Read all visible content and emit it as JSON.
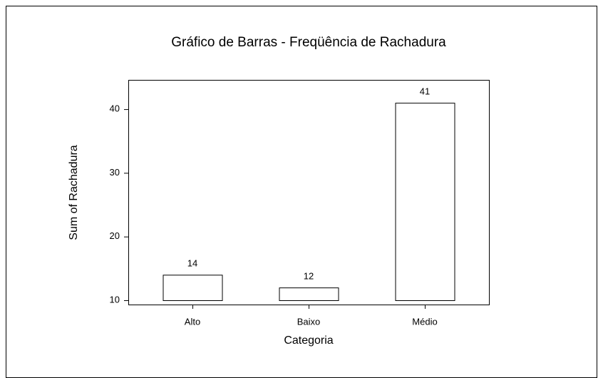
{
  "chart_data": {
    "type": "bar",
    "title": "Gráfico de Barras - Freqüência de Rachadura",
    "x_label": "Categoria",
    "y_label": "Sum of Rachadura",
    "categories": [
      "Alto",
      "Baixo",
      "Médio"
    ],
    "values": [
      14,
      12,
      41
    ],
    "color": "#ffffff",
    "ylim": [
      10,
      44.6
    ],
    "yticks": [
      10,
      20,
      30,
      40
    ],
    "grid": false
  }
}
